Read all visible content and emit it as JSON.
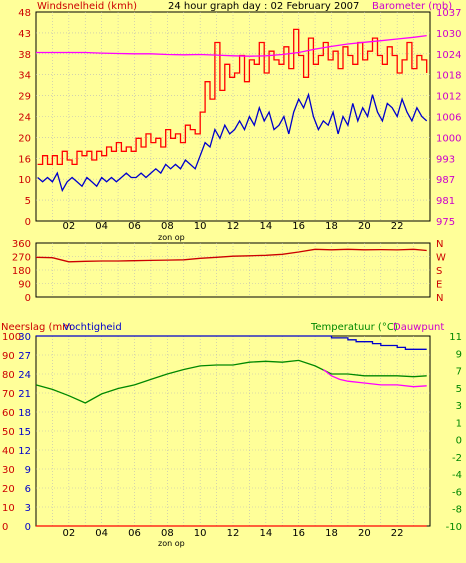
{
  "chart_data": [
    {
      "type": "line",
      "title": "24 hour graph day : 02 February 2007",
      "left_label": "Windsnelheid (kmh)",
      "right_label": "Barometer (mb)",
      "x_note": "zon op",
      "x_ticks": [
        "02",
        "04",
        "06",
        "08",
        "10",
        "12",
        "14",
        "16",
        "18",
        "20",
        "22"
      ],
      "y_left_ticks": [
        "0",
        "5",
        "10",
        "16",
        "20",
        "24",
        "29",
        "34",
        "38",
        "43",
        "48"
      ],
      "y_left_range": [
        0,
        48
      ],
      "y_right_ticks": [
        "975",
        "981",
        "987",
        "993",
        "1000",
        "1006",
        "1012",
        "1018",
        "1024",
        "1030",
        "1037"
      ],
      "y_right_range": [
        975,
        1037
      ],
      "series": [
        {
          "name": "Windsnelheid (kmh)",
          "color": "#ff0000",
          "step": true,
          "x": [
            0.1,
            0.4,
            0.7,
            1.0,
            1.3,
            1.6,
            1.9,
            2.2,
            2.5,
            2.8,
            3.1,
            3.4,
            3.7,
            4.0,
            4.3,
            4.6,
            4.9,
            5.2,
            5.5,
            5.8,
            6.1,
            6.4,
            6.7,
            7.0,
            7.3,
            7.6,
            7.9,
            8.2,
            8.5,
            8.8,
            9.1,
            9.4,
            9.7,
            10.0,
            10.3,
            10.6,
            10.9,
            11.2,
            11.5,
            11.8,
            12.1,
            12.4,
            12.7,
            13.0,
            13.3,
            13.6,
            13.9,
            14.2,
            14.5,
            14.8,
            15.1,
            15.4,
            15.7,
            16.0,
            16.3,
            16.6,
            16.9,
            17.2,
            17.5,
            17.8,
            18.1,
            18.4,
            18.7,
            19.0,
            19.3,
            19.6,
            19.9,
            20.2,
            20.5,
            20.8,
            21.1,
            21.4,
            21.7,
            22.0,
            22.3,
            22.6,
            22.9,
            23.2,
            23.5,
            23.8
          ],
          "values": [
            13,
            15,
            13,
            15,
            13,
            16,
            14,
            13,
            16,
            15,
            16,
            14,
            16,
            15,
            17,
            16,
            18,
            16,
            17,
            16,
            19,
            17,
            20,
            18,
            19,
            17,
            21,
            19,
            20,
            18,
            22,
            21,
            20,
            25,
            32,
            28,
            41,
            30,
            36,
            33,
            34,
            38,
            32,
            37,
            36,
            41,
            34,
            39,
            37,
            36,
            40,
            35,
            44,
            38,
            33,
            42,
            36,
            38,
            41,
            37,
            39,
            35,
            40,
            38,
            36,
            41,
            37,
            39,
            42,
            38,
            36,
            40,
            38,
            34,
            37,
            41,
            35,
            38,
            37,
            34
          ]
        },
        {
          "name": "Gust (kmh)",
          "color": "#0000cc",
          "step": false,
          "x": [
            0.1,
            0.4,
            0.7,
            1.0,
            1.3,
            1.6,
            1.9,
            2.2,
            2.5,
            2.8,
            3.1,
            3.4,
            3.7,
            4.0,
            4.3,
            4.6,
            4.9,
            5.2,
            5.5,
            5.8,
            6.1,
            6.4,
            6.7,
            7.0,
            7.3,
            7.6,
            7.9,
            8.2,
            8.5,
            8.8,
            9.1,
            9.4,
            9.7,
            10.0,
            10.3,
            10.6,
            10.9,
            11.2,
            11.5,
            11.8,
            12.1,
            12.4,
            12.7,
            13.0,
            13.3,
            13.6,
            13.9,
            14.2,
            14.5,
            14.8,
            15.1,
            15.4,
            15.7,
            16.0,
            16.3,
            16.6,
            16.9,
            17.2,
            17.5,
            17.8,
            18.1,
            18.4,
            18.7,
            19.0,
            19.3,
            19.6,
            19.9,
            20.2,
            20.5,
            20.8,
            21.1,
            21.4,
            21.7,
            22.0,
            22.3,
            22.6,
            22.9,
            23.2,
            23.5,
            23.8
          ],
          "values": [
            10,
            9,
            10,
            9,
            11,
            7,
            9,
            10,
            9,
            8,
            10,
            9,
            8,
            10,
            9,
            10,
            9,
            10,
            11,
            10,
            10,
            11,
            10,
            11,
            12,
            11,
            13,
            12,
            13,
            12,
            14,
            13,
            12,
            15,
            18,
            17,
            21,
            19,
            22,
            20,
            21,
            23,
            21,
            24,
            22,
            26,
            23,
            25,
            21,
            22,
            24,
            20,
            25,
            28,
            26,
            29,
            24,
            21,
            23,
            22,
            25,
            20,
            24,
            22,
            27,
            23,
            26,
            24,
            29,
            25,
            23,
            27,
            26,
            24,
            28,
            25,
            23,
            26,
            24,
            23
          ]
        },
        {
          "name": "Barometer (mb)",
          "color": "#ff00ff",
          "axis": "right",
          "step": false,
          "x": [
            0,
            1,
            2,
            3,
            4,
            5,
            6,
            7,
            8,
            9,
            10,
            11,
            12,
            13,
            14,
            15,
            16,
            17,
            18,
            19,
            20,
            21,
            22,
            23,
            23.8
          ],
          "values": [
            1025,
            1025,
            1025,
            1025,
            1024.8,
            1024.7,
            1024.6,
            1024.6,
            1024.4,
            1024.3,
            1024.4,
            1024.2,
            1024,
            1023.9,
            1024,
            1024.4,
            1025,
            1026,
            1026.8,
            1027.5,
            1028,
            1028.5,
            1029,
            1029.5,
            1030
          ]
        }
      ]
    },
    {
      "type": "line",
      "right_letters": [
        "N",
        "W",
        "S",
        "E",
        "N"
      ],
      "x_ticks": [],
      "y_left_ticks": [
        "0",
        "90",
        "180",
        "270",
        "360"
      ],
      "y_left_range": [
        0,
        360
      ],
      "series": [
        {
          "name": "Windrichting",
          "color": "#cc0000",
          "step": false,
          "x": [
            0,
            1,
            2,
            3,
            4,
            5,
            6,
            7,
            8,
            9,
            10,
            11,
            12,
            13,
            14,
            15,
            16,
            17,
            18,
            19,
            20,
            21,
            22,
            23,
            23.8
          ],
          "values": [
            265,
            262,
            235,
            238,
            240,
            240,
            242,
            244,
            246,
            248,
            258,
            265,
            272,
            275,
            278,
            285,
            300,
            318,
            315,
            318,
            315,
            316,
            314,
            318,
            310
          ]
        }
      ]
    },
    {
      "type": "line",
      "left_label_rain": "Neerslag (mm",
      "left_label_hum": "Vochtigheid",
      "right_label_temp": "Temperatuur (°C)",
      "right_label_dew": "Dauwpunt",
      "x_note": "zon op",
      "x_ticks": [
        "02",
        "04",
        "06",
        "08",
        "10",
        "12",
        "14",
        "16",
        "18",
        "20",
        "22"
      ],
      "y_left_rain_ticks": [
        "0",
        "3",
        "6",
        "9",
        "12",
        "15",
        "18",
        "21",
        "24",
        "27",
        "30"
      ],
      "y_left_hum_ticks": [
        "0",
        "10",
        "20",
        "30",
        "40",
        "50",
        "60",
        "70",
        "80",
        "90",
        "100"
      ],
      "y_left_range": [
        0,
        30
      ],
      "y_right_ticks": [
        "-10",
        "-8",
        "-6",
        "-4",
        "-2",
        "0",
        "1",
        "3",
        "5",
        "7",
        "9",
        "11"
      ],
      "y_right_range": [
        -10,
        11
      ],
      "series": [
        {
          "name": "Neerslag (mm",
          "color": "#ff0000",
          "step": false,
          "x": [
            0,
            23.8
          ],
          "values": [
            0,
            0
          ]
        },
        {
          "name": "Vochtigheid",
          "color": "#0000cc",
          "axis": "hum",
          "step": true,
          "x": [
            0,
            2,
            4,
            6,
            8,
            10,
            12,
            14,
            16,
            17,
            18,
            19,
            19.5,
            20,
            20.5,
            21,
            21.5,
            22,
            22.5,
            23,
            23.8
          ],
          "values": [
            100,
            100,
            100,
            100,
            100,
            100,
            100,
            100,
            100,
            100,
            99,
            98,
            97,
            97,
            96,
            95,
            95,
            94,
            93,
            93,
            93
          ]
        },
        {
          "name": "Temperatuur (°C)",
          "color": "#008800",
          "axis": "right",
          "step": false,
          "x": [
            0,
            1,
            2,
            3,
            4,
            5,
            6,
            7,
            8,
            9,
            10,
            11,
            12,
            13,
            14,
            15,
            16,
            17,
            18,
            19,
            20,
            21,
            22,
            23,
            23.8
          ],
          "values": [
            5.6,
            5.1,
            4.4,
            3.6,
            4.6,
            5.2,
            5.6,
            6.2,
            6.8,
            7.3,
            7.7,
            7.8,
            7.8,
            8.1,
            8.2,
            8.1,
            8.3,
            7.7,
            6.8,
            6.8,
            6.6,
            6.6,
            6.6,
            6.5,
            6.6
          ]
        },
        {
          "name": "Dauwpunt",
          "color": "#ff00ff",
          "axis": "right",
          "step": false,
          "x": [
            17.5,
            18,
            18.5,
            19,
            20,
            21,
            22,
            23,
            23.8
          ],
          "values": [
            7.3,
            6.6,
            6.2,
            6.0,
            5.8,
            5.6,
            5.6,
            5.4,
            5.5
          ]
        }
      ]
    }
  ]
}
